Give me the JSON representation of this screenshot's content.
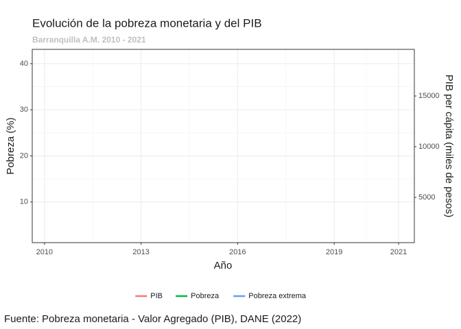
{
  "chart_data": {
    "type": "line",
    "title": "Evolución de la pobreza monetaria y del PIB",
    "subtitle": "Barranquilla A.M. 2010 - 2021",
    "x_label": "Año",
    "y_label": "Pobreza (%)",
    "y2_label": "PIB per cápita (miles de pesos)",
    "caption": "Fuente: Pobreza monetaria - Valor Agregado (PIB), DANE (2022)",
    "x": [],
    "series": [
      {
        "name": "PIB",
        "color": "#f8766d",
        "values": [],
        "axis": "y2"
      },
      {
        "name": "Pobreza",
        "color": "#00ba38",
        "values": []
      },
      {
        "name": "Pobreza extrema",
        "color": "#619cff",
        "values": []
      }
    ],
    "xlim": [
      2009.62,
      2021.49
    ],
    "xticks": [
      2010,
      2013,
      2016,
      2019,
      2021
    ],
    "ylim": [
      1.2,
      43.1
    ],
    "yticks": [
      10,
      20,
      30,
      40
    ],
    "y2lim": [
      540,
      19600
    ],
    "y2ticks": [
      5000,
      10000,
      15000
    ],
    "grid": true,
    "legend": "bottom"
  }
}
